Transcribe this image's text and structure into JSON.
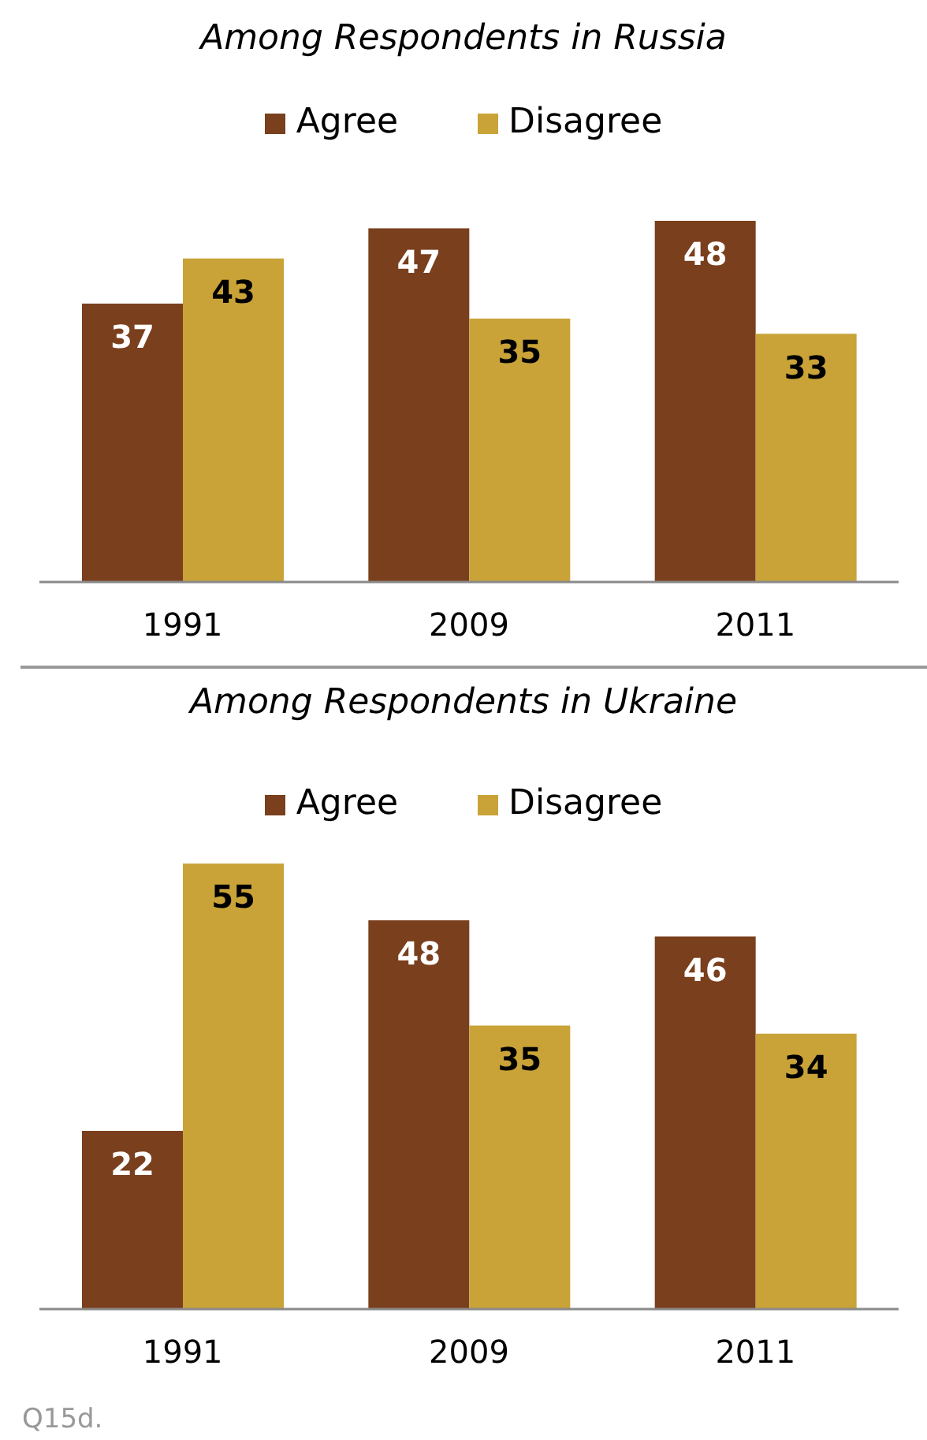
{
  "chart_data": [
    {
      "type": "bar",
      "title": "Among Respondents in Russia",
      "categories": [
        "1991",
        "2009",
        "2011"
      ],
      "series": [
        {
          "name": "Agree",
          "color": "#7a3f1d",
          "values": [
            37,
            47,
            48
          ]
        },
        {
          "name": "Disagree",
          "color": "#c9a338",
          "values": [
            43,
            35,
            33
          ]
        }
      ],
      "data_labels": true,
      "legend": "top"
    },
    {
      "type": "bar",
      "title": "Among Respondents in Ukraine",
      "categories": [
        "1991",
        "2009",
        "2011"
      ],
      "series": [
        {
          "name": "Agree",
          "color": "#7a3f1d",
          "values": [
            22,
            48,
            46
          ]
        },
        {
          "name": "Disagree",
          "color": "#c9a338",
          "values": [
            55,
            35,
            34
          ]
        }
      ],
      "data_labels": true,
      "legend": "top",
      "annotations": [
        "Q15d."
      ]
    }
  ]
}
